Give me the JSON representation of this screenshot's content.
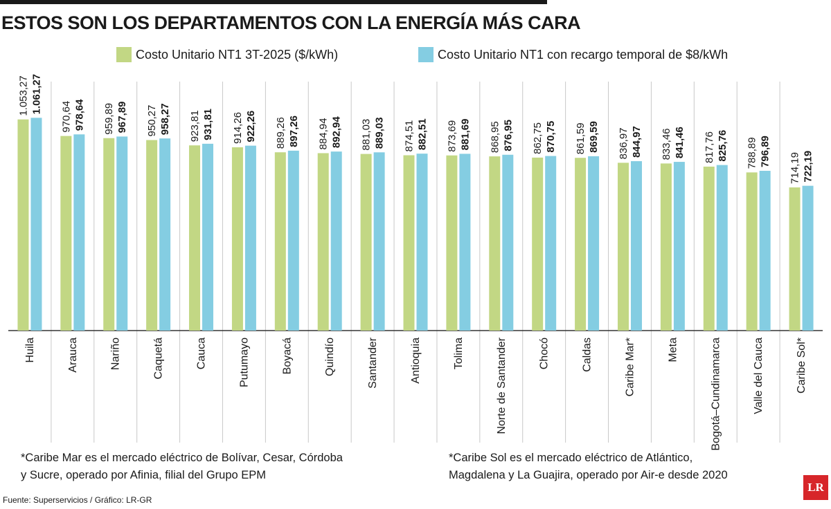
{
  "title": "ESTOS SON LOS DEPARTAMENTOS CON LA ENERGÍA MÁS CARA",
  "colors": {
    "series1": "#c2d784",
    "series2": "#84cde2",
    "grid": "#c8c8c8",
    "axis": "#333333",
    "logo": "#d7262a"
  },
  "chart_data": {
    "type": "bar",
    "title": "ESTOS SON LOS DEPARTAMENTOS CON LA ENERGÍA MÁS CARA",
    "legend_position": "top",
    "grid": false,
    "ylim": [
      0,
      1080
    ],
    "categories": [
      "Huila",
      "Arauca",
      "Nariño",
      "Caquetá",
      "Cauca",
      "Putumayo",
      "Boyacá",
      "Quindío",
      "Santander",
      "Antioquia",
      "Tolima",
      "Norte de Santander",
      "Chocó",
      "Caldas",
      "Caribe Mar*",
      "Meta",
      "Bogotá–Cundinamarca",
      "Valle del Cauca",
      "Caribe Sol*"
    ],
    "series": [
      {
        "name": "Costo Unitario NT1 3T-2025 ($/kWh)",
        "values": [
          1053.27,
          970.64,
          959.89,
          950.27,
          923.81,
          914.26,
          889.26,
          884.94,
          881.03,
          874.51,
          873.69,
          868.95,
          862.75,
          861.59,
          836.97,
          833.46,
          817.76,
          788.89,
          714.19
        ],
        "labels": [
          "1.053,27",
          "970,64",
          "959,89",
          "950,27",
          "923,81",
          "914,26",
          "889,26",
          "884,94",
          "881,03",
          "874,51",
          "873,69",
          "868,95",
          "862,75",
          "861,59",
          "836,97",
          "833,46",
          "817,76",
          "788,89",
          "714,19"
        ]
      },
      {
        "name": "Costo Unitario NT1 con recargo temporal de $8/kWh",
        "values": [
          1061.27,
          978.64,
          967.89,
          958.27,
          931.81,
          922.26,
          897.26,
          892.94,
          889.03,
          882.51,
          881.69,
          876.95,
          870.75,
          869.59,
          844.97,
          841.46,
          825.76,
          796.89,
          722.19
        ],
        "labels": [
          "1.061,27",
          "978,64",
          "967,89",
          "958,27",
          "931,81",
          "922,26",
          "897,26",
          "892,94",
          "889,03",
          "882,51",
          "881,69",
          "876,95",
          "870,75",
          "869,59",
          "844,97",
          "841,46",
          "825,76",
          "796,89",
          "722,19"
        ]
      }
    ]
  },
  "notes": {
    "caribe_mar_1": "*Caribe Mar es el mercado eléctrico de Bolívar, Cesar, Córdoba",
    "caribe_mar_2": "y Sucre, operado por Afinia, filial del Grupo EPM",
    "caribe_sol_1": "*Caribe Sol es el mercado eléctrico de Atlántico,",
    "caribe_sol_2": "Magdalena y La Guajira, operado por Air-e desde 2020"
  },
  "source": "Fuente: Superservicios / Gráfico: LR-GR",
  "logo_text": "LR"
}
